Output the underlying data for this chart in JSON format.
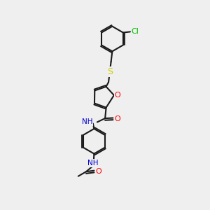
{
  "bg_color": "#efefef",
  "bond_color": "#1a1a1a",
  "atom_colors": {
    "O": "#ff0000",
    "N": "#0000cc",
    "S": "#cccc00",
    "Cl": "#00bb00",
    "C": "#1a1a1a",
    "H": "#1a1a1a"
  },
  "font_size": 7.5,
  "lw": 1.5,
  "figsize": [
    3.0,
    3.0
  ],
  "dpi": 100
}
